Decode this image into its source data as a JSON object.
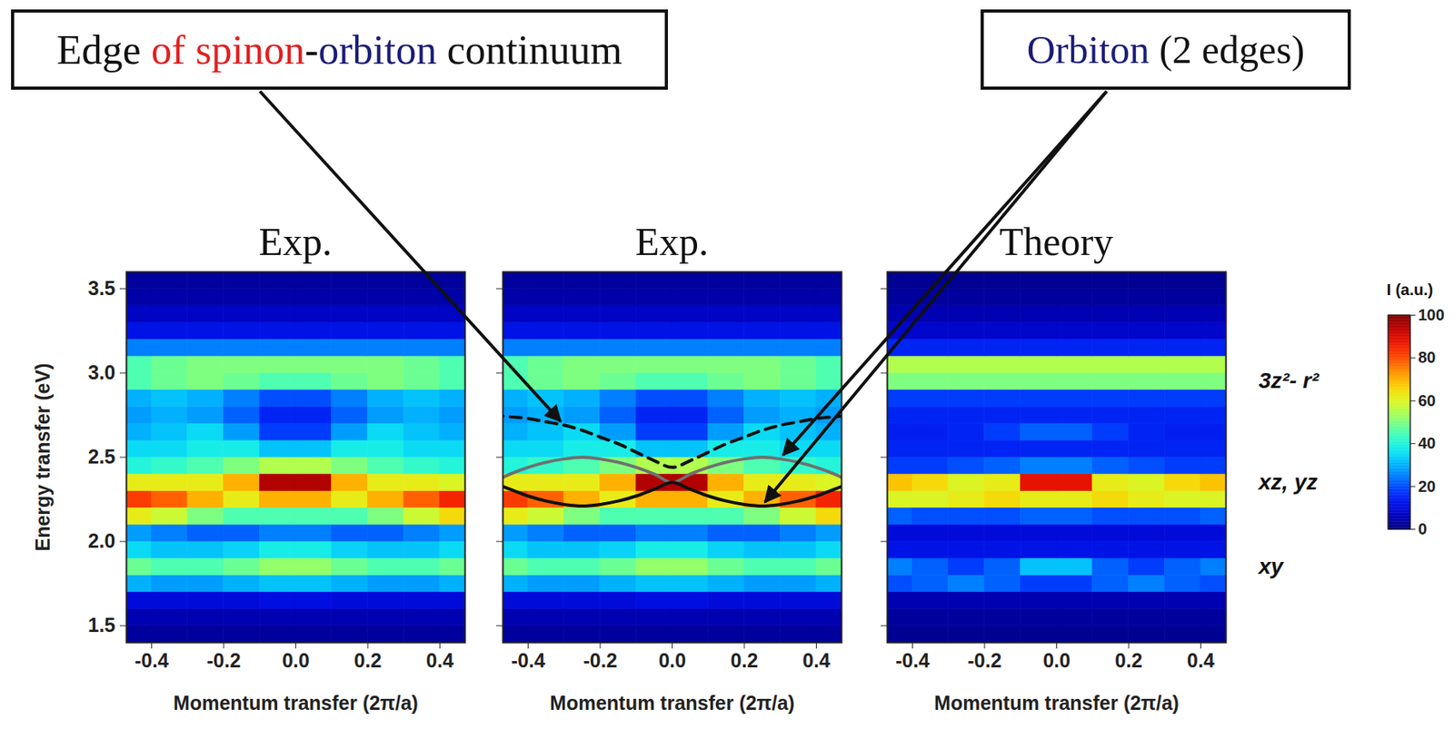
{
  "chart_data": [
    {
      "type": "heatmap",
      "title": "Exp.",
      "xlabel": "Momentum transfer (2π/a)",
      "ylabel": "Energy transfer (eV)",
      "xlim": [
        -0.47,
        0.47
      ],
      "ylim": [
        1.4,
        3.6
      ],
      "xticks": [
        -0.4,
        -0.2,
        {
          "value": 0,
          "label": "0.0"
        },
        0.2,
        0.4
      ],
      "yticks": [
        1.5,
        {
          "value": 2,
          "label": "2.0"
        },
        2.5,
        {
          "value": 3,
          "label": "3.0"
        },
        3.5
      ],
      "x": [
        -0.45,
        -0.35,
        -0.25,
        -0.15,
        -0.05,
        0.05,
        0.15,
        0.25,
        0.35,
        0.45
      ],
      "y": [
        1.45,
        1.55,
        1.65,
        1.75,
        1.85,
        1.95,
        2.05,
        2.15,
        2.25,
        2.35,
        2.45,
        2.55,
        2.65,
        2.75,
        2.85,
        2.95,
        3.05,
        3.15,
        3.25,
        3.35,
        3.45,
        3.55
      ],
      "intensity": [
        [
          3,
          3,
          3,
          3,
          3,
          3,
          3,
          3,
          3,
          3
        ],
        [
          5,
          5,
          5,
          5,
          5,
          5,
          5,
          5,
          5,
          5
        ],
        [
          10,
          10,
          10,
          10,
          11,
          11,
          10,
          10,
          10,
          10
        ],
        [
          30,
          28,
          28,
          30,
          32,
          32,
          30,
          28,
          28,
          30
        ],
        [
          48,
          45,
          45,
          48,
          52,
          52,
          48,
          45,
          45,
          48
        ],
        [
          35,
          32,
          32,
          34,
          38,
          38,
          34,
          32,
          32,
          35
        ],
        [
          28,
          25,
          22,
          22,
          25,
          25,
          22,
          22,
          25,
          28
        ],
        [
          62,
          58,
          50,
          45,
          45,
          45,
          45,
          50,
          58,
          65
        ],
        [
          82,
          78,
          70,
          62,
          70,
          70,
          62,
          70,
          78,
          85
        ],
        [
          62,
          62,
          62,
          70,
          95,
          95,
          70,
          62,
          62,
          60
        ],
        [
          40,
          42,
          45,
          50,
          55,
          55,
          50,
          45,
          42,
          40
        ],
        [
          35,
          35,
          38,
          38,
          32,
          32,
          38,
          38,
          35,
          35
        ],
        [
          30,
          32,
          35,
          28,
          18,
          18,
          28,
          35,
          32,
          30
        ],
        [
          28,
          30,
          28,
          22,
          15,
          15,
          22,
          28,
          30,
          28
        ],
        [
          30,
          32,
          30,
          25,
          20,
          20,
          25,
          30,
          32,
          30
        ],
        [
          45,
          48,
          50,
          48,
          45,
          45,
          48,
          50,
          48,
          45
        ],
        [
          45,
          48,
          50,
          50,
          50,
          50,
          50,
          50,
          48,
          45
        ],
        [
          25,
          25,
          25,
          25,
          25,
          25,
          25,
          25,
          25,
          25
        ],
        [
          12,
          12,
          12,
          12,
          12,
          12,
          12,
          12,
          12,
          12
        ],
        [
          7,
          7,
          7,
          7,
          7,
          7,
          7,
          7,
          7,
          7
        ],
        [
          4,
          4,
          4,
          4,
          4,
          4,
          4,
          4,
          4,
          4
        ],
        [
          3,
          3,
          3,
          3,
          3,
          3,
          3,
          3,
          3,
          3
        ]
      ]
    },
    {
      "type": "heatmap",
      "title": "Exp.",
      "tick_labels": "x",
      "xlabel": "Momentum transfer (2π/a)",
      "xlim": [
        -0.47,
        0.47
      ],
      "ylim": [
        1.4,
        3.6
      ],
      "xticks": [
        -0.4,
        -0.2,
        {
          "value": 0,
          "label": "0.0"
        },
        0.2,
        0.4
      ],
      "yticks": [
        1.5,
        2,
        2.5,
        3,
        3.5
      ],
      "x": [
        -0.45,
        -0.35,
        -0.25,
        -0.15,
        -0.05,
        0.05,
        0.15,
        0.25,
        0.35,
        0.45
      ],
      "y": [
        1.45,
        1.55,
        1.65,
        1.75,
        1.85,
        1.95,
        2.05,
        2.15,
        2.25,
        2.35,
        2.45,
        2.55,
        2.65,
        2.75,
        2.85,
        2.95,
        3.05,
        3.15,
        3.25,
        3.35,
        3.45,
        3.55
      ],
      "intensity": [
        [
          3,
          3,
          3,
          3,
          3,
          3,
          3,
          3,
          3,
          3
        ],
        [
          5,
          5,
          5,
          5,
          5,
          5,
          5,
          5,
          5,
          5
        ],
        [
          10,
          10,
          10,
          10,
          11,
          11,
          10,
          10,
          10,
          10
        ],
        [
          30,
          28,
          28,
          30,
          32,
          32,
          30,
          28,
          28,
          30
        ],
        [
          48,
          45,
          45,
          48,
          52,
          52,
          48,
          45,
          45,
          48
        ],
        [
          35,
          32,
          32,
          34,
          38,
          38,
          34,
          32,
          32,
          35
        ],
        [
          28,
          25,
          22,
          22,
          25,
          25,
          22,
          22,
          25,
          28
        ],
        [
          62,
          58,
          50,
          45,
          45,
          45,
          45,
          50,
          58,
          65
        ],
        [
          82,
          78,
          70,
          62,
          70,
          70,
          62,
          70,
          78,
          85
        ],
        [
          62,
          62,
          62,
          70,
          95,
          95,
          70,
          62,
          62,
          60
        ],
        [
          40,
          42,
          45,
          50,
          55,
          55,
          50,
          45,
          42,
          40
        ],
        [
          35,
          35,
          38,
          38,
          32,
          32,
          38,
          38,
          35,
          35
        ],
        [
          30,
          32,
          35,
          28,
          18,
          18,
          28,
          35,
          32,
          30
        ],
        [
          28,
          30,
          28,
          22,
          15,
          15,
          22,
          28,
          30,
          28
        ],
        [
          30,
          32,
          30,
          25,
          20,
          20,
          25,
          30,
          32,
          30
        ],
        [
          45,
          48,
          50,
          48,
          45,
          45,
          48,
          50,
          48,
          45
        ],
        [
          45,
          48,
          50,
          50,
          50,
          50,
          50,
          50,
          48,
          45
        ],
        [
          25,
          25,
          25,
          25,
          25,
          25,
          25,
          25,
          25,
          25
        ],
        [
          12,
          12,
          12,
          12,
          12,
          12,
          12,
          12,
          12,
          12
        ],
        [
          7,
          7,
          7,
          7,
          7,
          7,
          7,
          7,
          7,
          7
        ],
        [
          4,
          4,
          4,
          4,
          4,
          4,
          4,
          4,
          4,
          4
        ],
        [
          3,
          3,
          3,
          3,
          3,
          3,
          3,
          3,
          3,
          3
        ]
      ],
      "series": [
        {
          "type": "line",
          "color": "#111111",
          "line_style": "dashed",
          "x": [
            -0.5,
            -0.45,
            -0.4,
            -0.35,
            -0.3,
            -0.25,
            -0.2,
            -0.15,
            -0.1,
            -0.05,
            0,
            0.05,
            0.1,
            0.15,
            0.2,
            0.25,
            0.3,
            0.35,
            0.4,
            0.45,
            0.5
          ],
          "values": [
            2.75,
            2.74,
            2.73,
            2.71,
            2.69,
            2.66,
            2.62,
            2.58,
            2.53,
            2.48,
            2.44,
            2.48,
            2.53,
            2.58,
            2.62,
            2.66,
            2.69,
            2.71,
            2.73,
            2.74,
            2.75
          ]
        },
        {
          "type": "line",
          "color": "#707070",
          "line_style": "solid",
          "x": [
            -0.5,
            -0.45,
            -0.4,
            -0.35,
            -0.3,
            -0.25,
            -0.2,
            -0.15,
            -0.1,
            -0.05,
            0,
            0.05,
            0.1,
            0.15,
            0.2,
            0.25,
            0.3,
            0.35,
            0.4,
            0.45,
            0.5
          ],
          "values": [
            2.35,
            2.4,
            2.44,
            2.47,
            2.49,
            2.5,
            2.49,
            2.47,
            2.44,
            2.4,
            2.35,
            2.4,
            2.44,
            2.47,
            2.49,
            2.5,
            2.49,
            2.47,
            2.44,
            2.4,
            2.35
          ]
        },
        {
          "type": "line",
          "color": "#111111",
          "line_style": "solid",
          "x": [
            -0.5,
            -0.45,
            -0.4,
            -0.35,
            -0.3,
            -0.25,
            -0.2,
            -0.15,
            -0.1,
            -0.05,
            0,
            0.05,
            0.1,
            0.15,
            0.2,
            0.25,
            0.3,
            0.35,
            0.4,
            0.45,
            0.5
          ],
          "values": [
            2.35,
            2.31,
            2.27,
            2.24,
            2.22,
            2.21,
            2.22,
            2.24,
            2.27,
            2.31,
            2.35,
            2.31,
            2.27,
            2.24,
            2.22,
            2.21,
            2.22,
            2.24,
            2.27,
            2.31,
            2.35
          ]
        }
      ],
      "annotations": [
        {
          "parts": [
            {
              "text": "Edge ",
              "color": "#111111"
            },
            {
              "text": "of spinon",
              "color": "#e21f1f"
            },
            {
              "text": "-",
              "color": "#111111"
            },
            {
              "text": "orbiton",
              "color": "#1c1c78"
            },
            {
              "text": " continuum",
              "color": "#111111"
            }
          ],
          "points_to": [
            0
          ]
        },
        {
          "parts": [
            {
              "text": "Orbiton",
              "color": "#1c1c78"
            },
            {
              "text": " (2 edges)",
              "color": "#111111"
            }
          ],
          "points_to": [
            1,
            2
          ]
        }
      ]
    },
    {
      "type": "heatmap",
      "title": "Theory",
      "tick_labels": "x",
      "xlabel": "Momentum transfer (2π/a)",
      "xlim": [
        -0.47,
        0.47
      ],
      "ylim": [
        1.4,
        3.6
      ],
      "xticks": [
        -0.4,
        -0.2,
        {
          "value": 0,
          "label": "0.0"
        },
        0.2,
        0.4
      ],
      "yticks": [
        1.5,
        2,
        2.5,
        3,
        3.5
      ],
      "x": [
        -0.45,
        -0.35,
        -0.25,
        -0.15,
        -0.05,
        0.05,
        0.15,
        0.25,
        0.35,
        0.45
      ],
      "y": [
        1.45,
        1.55,
        1.65,
        1.75,
        1.85,
        1.95,
        2.05,
        2.15,
        2.25,
        2.35,
        2.45,
        2.55,
        2.65,
        2.75,
        2.85,
        2.95,
        3.05,
        3.15,
        3.25,
        3.35,
        3.45,
        3.55
      ],
      "intensity": [
        [
          2,
          2,
          2,
          2,
          2,
          2,
          2,
          2,
          2,
          2
        ],
        [
          3,
          3,
          3,
          3,
          3,
          3,
          3,
          3,
          3,
          3
        ],
        [
          5,
          5,
          5,
          5,
          5,
          5,
          5,
          5,
          5,
          5
        ],
        [
          20,
          22,
          25,
          22,
          18,
          18,
          22,
          25,
          22,
          20
        ],
        [
          25,
          22,
          18,
          22,
          32,
          32,
          22,
          18,
          22,
          25
        ],
        [
          12,
          12,
          12,
          12,
          12,
          12,
          12,
          12,
          12,
          12
        ],
        [
          10,
          10,
          10,
          10,
          10,
          10,
          10,
          10,
          10,
          10
        ],
        [
          22,
          20,
          20,
          20,
          22,
          22,
          20,
          20,
          20,
          22
        ],
        [
          60,
          60,
          62,
          65,
          62,
          62,
          65,
          62,
          60,
          60
        ],
        [
          68,
          65,
          60,
          62,
          88,
          88,
          62,
          60,
          65,
          68
        ],
        [
          18,
          18,
          20,
          22,
          25,
          25,
          22,
          20,
          18,
          18
        ],
        [
          15,
          15,
          15,
          15,
          15,
          15,
          15,
          15,
          15,
          15
        ],
        [
          14,
          14,
          15,
          18,
          22,
          22,
          18,
          15,
          14,
          14
        ],
        [
          15,
          15,
          15,
          15,
          15,
          15,
          15,
          15,
          15,
          15
        ],
        [
          18,
          18,
          18,
          18,
          18,
          18,
          18,
          18,
          18,
          18
        ],
        [
          50,
          50,
          50,
          50,
          50,
          50,
          50,
          50,
          50,
          50
        ],
        [
          55,
          55,
          55,
          55,
          55,
          55,
          55,
          55,
          55,
          55
        ],
        [
          15,
          15,
          15,
          15,
          15,
          15,
          15,
          15,
          15,
          15
        ],
        [
          8,
          8,
          8,
          8,
          8,
          8,
          8,
          8,
          8,
          8
        ],
        [
          5,
          5,
          5,
          5,
          5,
          5,
          5,
          5,
          5,
          5
        ],
        [
          3,
          3,
          3,
          3,
          3,
          3,
          3,
          3,
          3,
          3
        ],
        [
          2,
          2,
          2,
          2,
          2,
          2,
          2,
          2,
          2,
          2
        ]
      ],
      "band_labels": [
        {
          "text": "3z²- r²",
          "y": 2.95
        },
        {
          "text": "xz, yz",
          "y": 2.35
        },
        {
          "text": "xy",
          "y": 1.85
        }
      ],
      "colorbar": {
        "label": "I (a.u.)",
        "range": [
          0,
          100
        ],
        "ticks": [
          0,
          20,
          40,
          60,
          80,
          100
        ]
      }
    }
  ]
}
